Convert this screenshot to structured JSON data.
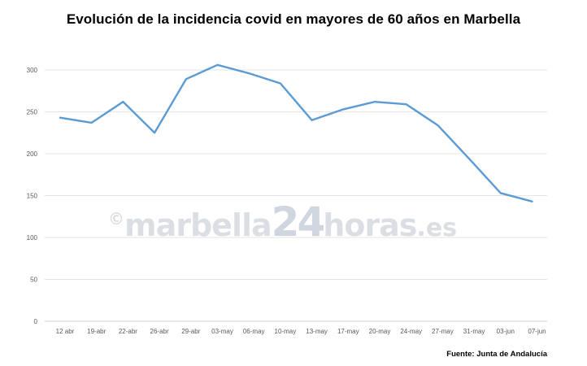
{
  "title": "Evolución de la incidencia covid en mayores de 60 años en Marbella",
  "source": "Fuente: Junta de Andalucía",
  "watermark": {
    "copyright": "©",
    "main": "marbella",
    "number": "24",
    "suffix": "horas",
    "tld": ".es"
  },
  "colors": {
    "line": "#5B9BD5",
    "grid": "#E6E6E6",
    "axis_text": "#595959",
    "watermark": "#BFC6CF"
  },
  "chart_data": {
    "type": "line",
    "title": "Evolución de la incidencia covid en mayores de 60 años en Marbella",
    "xlabel": "",
    "ylabel": "",
    "ylim": [
      0,
      300
    ],
    "yticks": [
      0,
      50,
      100,
      150,
      200,
      250,
      300
    ],
    "grid": true,
    "legend": "none",
    "categories": [
      "12 abr",
      "19-abr",
      "22-abr",
      "26-abr",
      "29-abr",
      "03-may",
      "06-may",
      "10-may",
      "13-may",
      "17-may",
      "20-may",
      "24-may",
      "27-may",
      "31-may",
      "03-jun",
      "07-jun"
    ],
    "series": [
      {
        "values": [
          243,
          237,
          262,
          225,
          289,
          306,
          296,
          284,
          240,
          253,
          262,
          259,
          234,
          194,
          153,
          143
        ]
      }
    ]
  }
}
